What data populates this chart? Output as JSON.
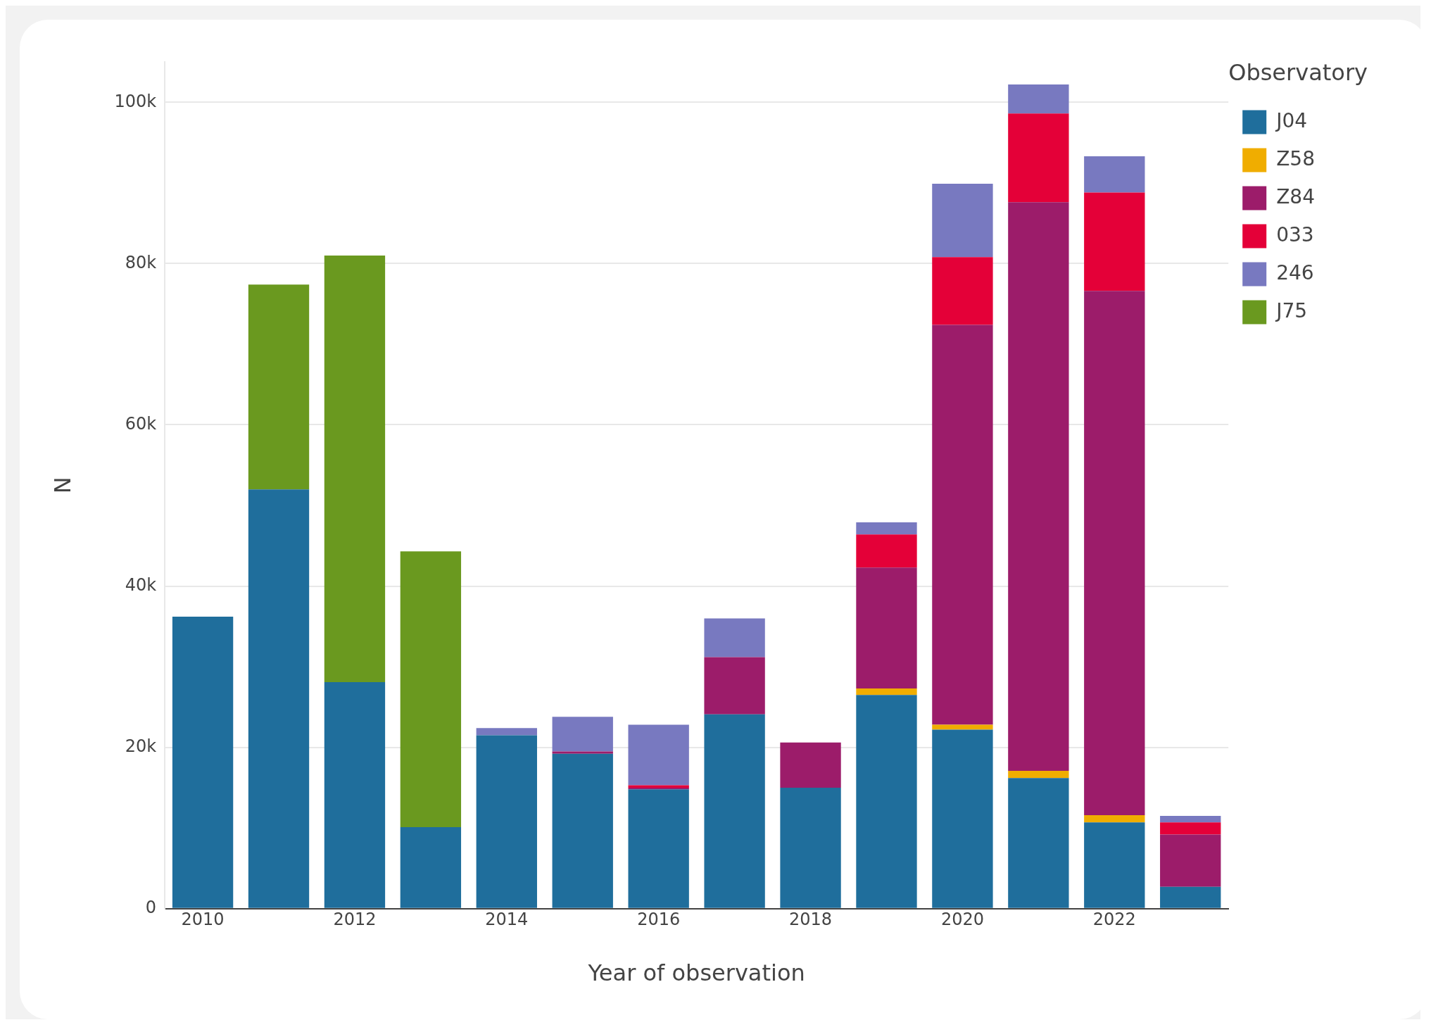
{
  "chart_data": {
    "type": "bar",
    "stacked": true,
    "xlabel": "Year of observation",
    "ylabel": "N",
    "legend_title": "Observatory",
    "legend": "top right",
    "grid": "y",
    "x": [
      2010,
      2011,
      2012,
      2013,
      2014,
      2015,
      2016,
      2017,
      2018,
      2019,
      2020,
      2021,
      2022,
      2023
    ],
    "xlim": [
      2009.5,
      2023.5
    ],
    "xticks": [
      2010,
      2012,
      2014,
      2016,
      2018,
      2020,
      2022
    ],
    "ylim": [
      0,
      105000
    ],
    "yticks": [
      {
        "value": 0,
        "label": "0"
      },
      {
        "value": 20000,
        "label": "20k"
      },
      {
        "value": 40000,
        "label": "40k"
      },
      {
        "value": 60000,
        "label": "60k"
      },
      {
        "value": 80000,
        "label": "80k"
      },
      {
        "value": 100000,
        "label": "100k"
      }
    ],
    "series": [
      {
        "name": "J04",
        "color": "#1f6e9c",
        "values": [
          36200,
          52000,
          28100,
          10100,
          21500,
          19200,
          14800,
          24100,
          15000,
          26500,
          22200,
          16200,
          10700,
          2700
        ]
      },
      {
        "name": "Z58",
        "color": "#f0ad00",
        "values": [
          null,
          null,
          null,
          null,
          null,
          null,
          null,
          null,
          null,
          800,
          600,
          900,
          900,
          null
        ]
      },
      {
        "name": "Z84",
        "color": "#9c1c6a",
        "values": [
          null,
          null,
          null,
          null,
          null,
          300,
          200,
          7100,
          5600,
          15000,
          49600,
          70500,
          65000,
          6500
        ]
      },
      {
        "name": "033",
        "color": "#e40038",
        "values": [
          null,
          null,
          null,
          null,
          null,
          null,
          300,
          null,
          null,
          4100,
          8400,
          11000,
          12200,
          1500
        ]
      },
      {
        "name": "246",
        "color": "#7879c0",
        "values": [
          null,
          null,
          null,
          null,
          900,
          4300,
          7500,
          4800,
          null,
          1500,
          9100,
          3600,
          4500,
          800
        ]
      },
      {
        "name": "J75",
        "color": "#6a991f",
        "values": [
          null,
          25400,
          52900,
          34200,
          null,
          null,
          null,
          null,
          null,
          null,
          null,
          null,
          null,
          null
        ]
      }
    ]
  }
}
